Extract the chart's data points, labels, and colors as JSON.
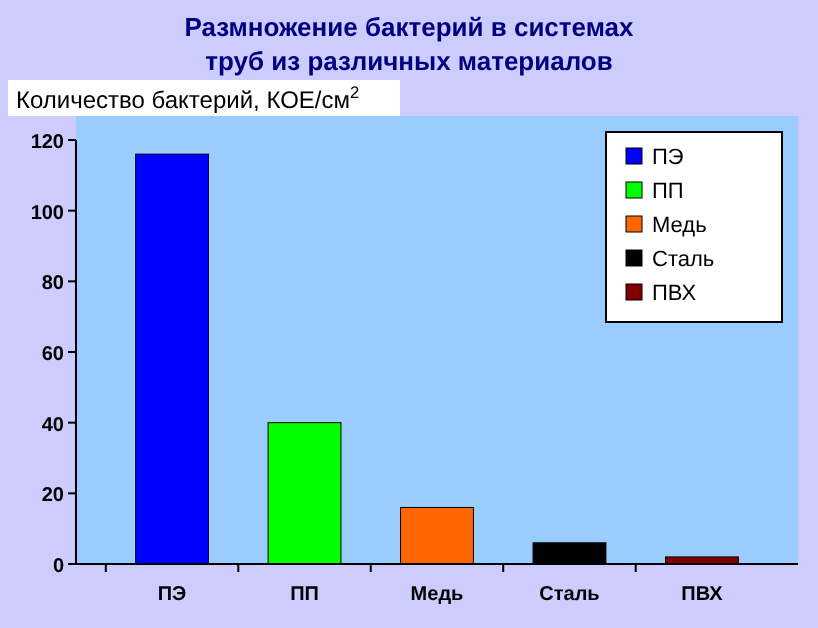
{
  "chart_data": {
    "type": "bar",
    "title": "Размножение бактерий в системах\nтруб из различных  материалов",
    "ylabel": "Количество бактерий, КОЕ/см$^{2}$",
    "categories": [
      "ПЭ",
      "ПП",
      "Медь",
      "Сталь",
      "ПВХ"
    ],
    "series": [
      {
        "name": "ПЭ",
        "color": "#0000ff",
        "values": [
          116,
          null,
          null,
          null,
          null
        ]
      },
      {
        "name": "ПП",
        "color": "#00ff00",
        "values": [
          null,
          40,
          null,
          null,
          null
        ]
      },
      {
        "name": "Медь",
        "color": "#ff6600",
        "values": [
          null,
          null,
          16,
          null,
          null
        ]
      },
      {
        "name": "Сталь",
        "color": "#000000",
        "values": [
          null,
          null,
          null,
          6,
          null
        ]
      },
      {
        "name": "ПВХ",
        "color": "#800000",
        "values": [
          null,
          null,
          null,
          null,
          2
        ]
      }
    ],
    "stacked": true,
    "ylim": [
      0,
      120
    ],
    "yticks": [
      0,
      20,
      40,
      60,
      80,
      100,
      120
    ],
    "legend": "top right"
  }
}
